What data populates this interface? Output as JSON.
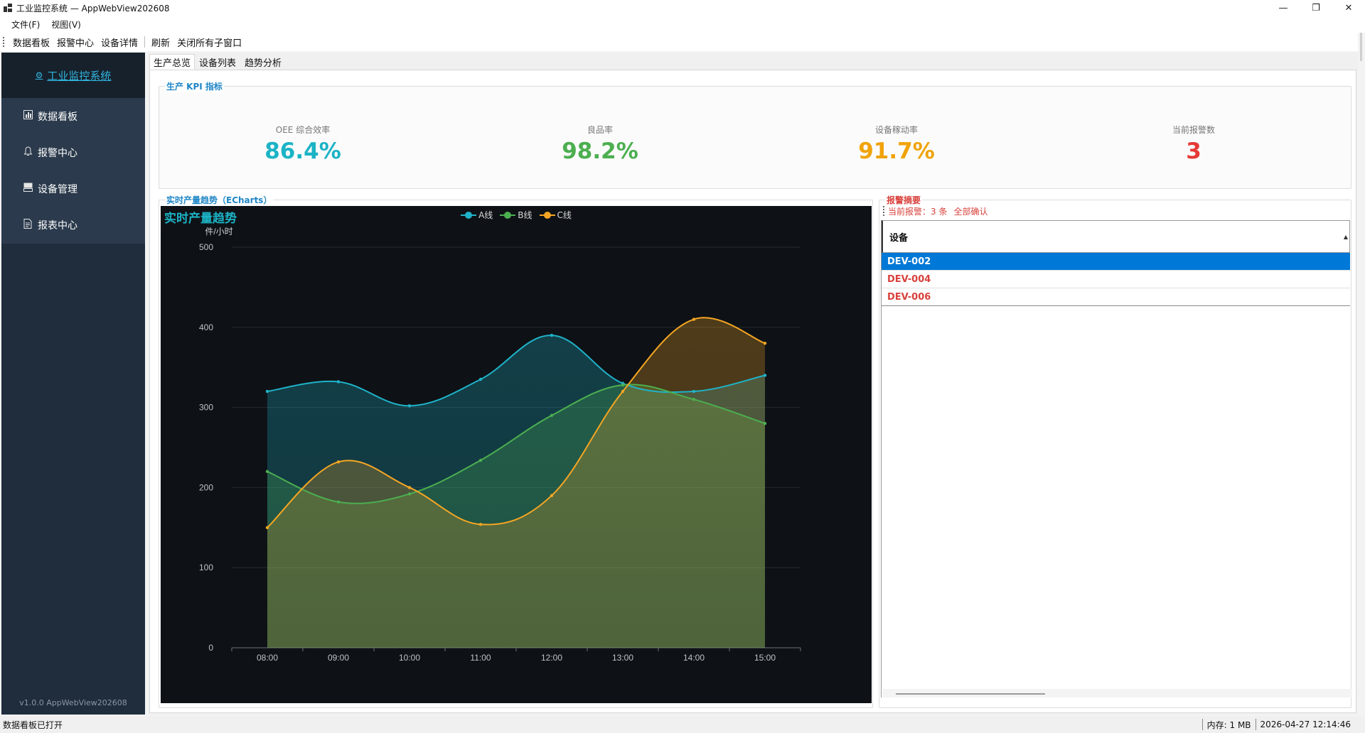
{
  "window": {
    "title": "工业监控系统 — AppWebView202608",
    "minimize": "—",
    "maximize": "❐",
    "close": "✕"
  },
  "menubar": {
    "items": [
      "文件(F)",
      "视图(V)"
    ]
  },
  "toolbar": {
    "items": [
      "数据看板",
      "报警中心",
      "设备详情"
    ],
    "refresh": "刷新",
    "close_all": "关闭所有子窗口"
  },
  "sidebar": {
    "brand": "工业监控系统",
    "items": [
      {
        "label": "数据看板",
        "icon": "bar-chart-icon"
      },
      {
        "label": "报警中心",
        "icon": "bell-icon"
      },
      {
        "label": "设备管理",
        "icon": "server-icon"
      },
      {
        "label": "报表中心",
        "icon": "document-icon"
      }
    ],
    "version": "v1.0.0  AppWebView202608"
  },
  "tabs": [
    "生产总览",
    "设备列表",
    "趋势分析"
  ],
  "kpi": {
    "group_title": "生产 KPI 指标",
    "items": [
      {
        "label": "OEE 综合效率",
        "value": "86.4%",
        "color": "#1cb3c6"
      },
      {
        "label": "良品率",
        "value": "98.2%",
        "color": "#4caf50"
      },
      {
        "label": "设备稼动率",
        "value": "91.7%",
        "color": "#f0a30a"
      },
      {
        "label": "当前报警数",
        "value": "3",
        "color": "#e53935"
      }
    ]
  },
  "chart_group_title": "实时产量趋势（ECharts）",
  "chart_data": {
    "type": "area",
    "title": "实时产量趋势",
    "ylabel": "件/小时",
    "categories": [
      "08:00",
      "09:00",
      "10:00",
      "11:00",
      "12:00",
      "13:00",
      "14:00",
      "15:00"
    ],
    "ylim": [
      0,
      500
    ],
    "yticks": [
      0,
      100,
      200,
      300,
      400,
      500
    ],
    "grid": true,
    "legend": "top-center",
    "smooth": true,
    "series": [
      {
        "name": "A线",
        "color": "#1fb3c9",
        "values": [
          320,
          332,
          302,
          335,
          390,
          330,
          320,
          340
        ]
      },
      {
        "name": "B线",
        "color": "#4caf50",
        "values": [
          220,
          182,
          192,
          234,
          290,
          328,
          310,
          280
        ]
      },
      {
        "name": "C线",
        "color": "#f5a623",
        "values": [
          150,
          232,
          200,
          154,
          190,
          320,
          410,
          380
        ]
      }
    ]
  },
  "alarm": {
    "group_title": "报警摘要",
    "current": "当前报警：3 条",
    "ack_all": "全部确认",
    "column": "设备",
    "rows": [
      "DEV-002",
      "DEV-004",
      "DEV-006"
    ]
  },
  "statusbar": {
    "left": "数据看板已打开",
    "memory": "内存: 1 MB",
    "time": "2026-04-27 12:14:46"
  }
}
